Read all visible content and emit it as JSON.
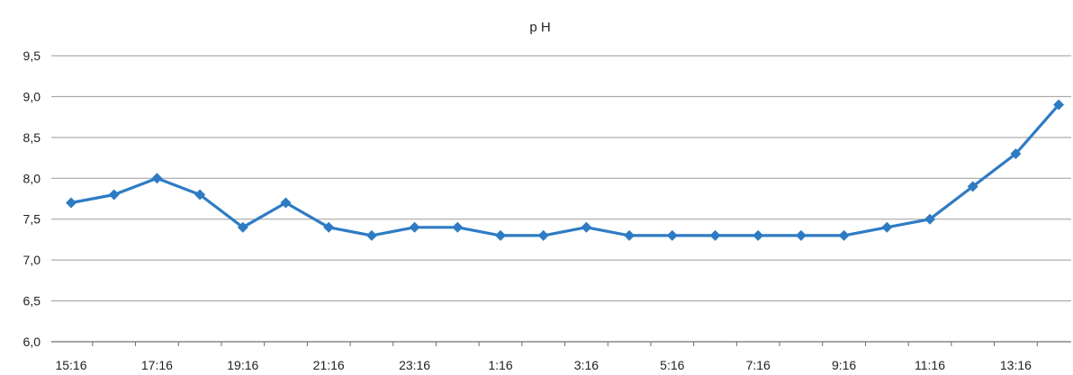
{
  "chart_data": {
    "type": "line",
    "title": "p H",
    "xlabel": "",
    "ylabel": "",
    "ylim": [
      6.0,
      9.5
    ],
    "y_ticks": [
      "6,0",
      "6,5",
      "7,0",
      "7,5",
      "8,0",
      "8,5",
      "9,0",
      "9,5"
    ],
    "y_tick_values": [
      6.0,
      6.5,
      7.0,
      7.5,
      8.0,
      8.5,
      9.0,
      9.5
    ],
    "x_tick_labels": [
      "15:16",
      "17:16",
      "19:16",
      "21:16",
      "23:16",
      "1:16",
      "3:16",
      "5:16",
      "7:16",
      "9:16",
      "11:16",
      "13:16"
    ],
    "x_tick_every": 2,
    "grid": true,
    "legend": "none",
    "series": [
      {
        "color": "#2e7bc4",
        "marker": "diamond",
        "values": [
          7.7,
          7.8,
          8.0,
          7.8,
          7.4,
          7.7,
          7.4,
          7.3,
          7.4,
          7.4,
          7.3,
          7.3,
          7.4,
          7.3,
          7.3,
          7.3,
          7.3,
          7.3,
          7.3,
          7.4,
          7.5,
          7.9,
          8.3,
          8.9
        ]
      }
    ]
  }
}
